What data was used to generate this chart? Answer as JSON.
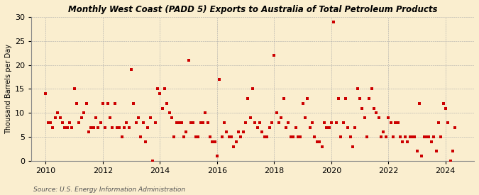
{
  "title": "Monthly West Coast (PADD 5) Exports to Australia of Total Petroleum Products",
  "ylabel": "Thousand Barrels per Day",
  "source": "Source: U.S. Energy Information Administration",
  "background_color": "#faeecf",
  "dot_color": "#cc0000",
  "dot_size": 7,
  "xlim": [
    2009.5,
    2025.0
  ],
  "ylim": [
    0,
    30
  ],
  "yticks": [
    0,
    5,
    10,
    15,
    20,
    25,
    30
  ],
  "xticks": [
    2010,
    2012,
    2014,
    2016,
    2018,
    2020,
    2022,
    2024
  ],
  "data_points": [
    [
      2010.0,
      14
    ],
    [
      2010.08,
      8
    ],
    [
      2010.17,
      8
    ],
    [
      2010.25,
      7
    ],
    [
      2010.33,
      9
    ],
    [
      2010.42,
      10
    ],
    [
      2010.5,
      9
    ],
    [
      2010.58,
      8
    ],
    [
      2010.67,
      7
    ],
    [
      2010.75,
      7
    ],
    [
      2010.83,
      8
    ],
    [
      2010.92,
      7
    ],
    [
      2011.0,
      15
    ],
    [
      2011.08,
      12
    ],
    [
      2011.17,
      8
    ],
    [
      2011.25,
      9
    ],
    [
      2011.33,
      10
    ],
    [
      2011.42,
      12
    ],
    [
      2011.5,
      6
    ],
    [
      2011.58,
      7
    ],
    [
      2011.67,
      7
    ],
    [
      2011.75,
      9
    ],
    [
      2011.83,
      7
    ],
    [
      2011.92,
      8
    ],
    [
      2012.0,
      12
    ],
    [
      2012.08,
      7
    ],
    [
      2012.17,
      12
    ],
    [
      2012.25,
      9
    ],
    [
      2012.33,
      7
    ],
    [
      2012.42,
      12
    ],
    [
      2012.5,
      7
    ],
    [
      2012.58,
      7
    ],
    [
      2012.67,
      5
    ],
    [
      2012.75,
      7
    ],
    [
      2012.83,
      8
    ],
    [
      2012.92,
      7
    ],
    [
      2013.0,
      19
    ],
    [
      2013.08,
      12
    ],
    [
      2013.17,
      8
    ],
    [
      2013.25,
      9
    ],
    [
      2013.33,
      5
    ],
    [
      2013.42,
      8
    ],
    [
      2013.5,
      4
    ],
    [
      2013.58,
      7
    ],
    [
      2013.67,
      9
    ],
    [
      2013.75,
      0
    ],
    [
      2013.83,
      8
    ],
    [
      2013.92,
      15
    ],
    [
      2014.0,
      14
    ],
    [
      2014.08,
      11
    ],
    [
      2014.17,
      15
    ],
    [
      2014.25,
      12
    ],
    [
      2014.33,
      10
    ],
    [
      2014.42,
      9
    ],
    [
      2014.5,
      5
    ],
    [
      2014.58,
      8
    ],
    [
      2014.67,
      8
    ],
    [
      2014.75,
      8
    ],
    [
      2014.83,
      5
    ],
    [
      2014.92,
      6
    ],
    [
      2015.0,
      21
    ],
    [
      2015.08,
      8
    ],
    [
      2015.17,
      8
    ],
    [
      2015.25,
      5
    ],
    [
      2015.33,
      5
    ],
    [
      2015.42,
      8
    ],
    [
      2015.5,
      8
    ],
    [
      2015.58,
      10
    ],
    [
      2015.67,
      8
    ],
    [
      2015.75,
      5
    ],
    [
      2015.83,
      4
    ],
    [
      2015.92,
      4
    ],
    [
      2016.0,
      1
    ],
    [
      2016.08,
      17
    ],
    [
      2016.17,
      5
    ],
    [
      2016.25,
      8
    ],
    [
      2016.33,
      6
    ],
    [
      2016.42,
      5
    ],
    [
      2016.5,
      5
    ],
    [
      2016.58,
      3
    ],
    [
      2016.67,
      4
    ],
    [
      2016.75,
      6
    ],
    [
      2016.83,
      5
    ],
    [
      2016.92,
      6
    ],
    [
      2017.0,
      8
    ],
    [
      2017.08,
      13
    ],
    [
      2017.17,
      9
    ],
    [
      2017.25,
      15
    ],
    [
      2017.33,
      8
    ],
    [
      2017.42,
      7
    ],
    [
      2017.5,
      8
    ],
    [
      2017.58,
      6
    ],
    [
      2017.67,
      5
    ],
    [
      2017.75,
      5
    ],
    [
      2017.83,
      7
    ],
    [
      2017.92,
      8
    ],
    [
      2018.0,
      22
    ],
    [
      2018.08,
      10
    ],
    [
      2018.17,
      8
    ],
    [
      2018.25,
      9
    ],
    [
      2018.33,
      13
    ],
    [
      2018.42,
      7
    ],
    [
      2018.5,
      8
    ],
    [
      2018.58,
      5
    ],
    [
      2018.67,
      5
    ],
    [
      2018.75,
      7
    ],
    [
      2018.83,
      5
    ],
    [
      2018.92,
      5
    ],
    [
      2019.0,
      12
    ],
    [
      2019.08,
      9
    ],
    [
      2019.17,
      13
    ],
    [
      2019.25,
      7
    ],
    [
      2019.33,
      8
    ],
    [
      2019.42,
      5
    ],
    [
      2019.5,
      4
    ],
    [
      2019.58,
      4
    ],
    [
      2019.67,
      3
    ],
    [
      2019.75,
      8
    ],
    [
      2019.83,
      7
    ],
    [
      2019.92,
      7
    ],
    [
      2020.0,
      8
    ],
    [
      2020.08,
      29
    ],
    [
      2020.17,
      8
    ],
    [
      2020.25,
      13
    ],
    [
      2020.33,
      5
    ],
    [
      2020.42,
      8
    ],
    [
      2020.5,
      13
    ],
    [
      2020.58,
      7
    ],
    [
      2020.67,
      5
    ],
    [
      2020.75,
      3
    ],
    [
      2020.83,
      7
    ],
    [
      2020.92,
      15
    ],
    [
      2021.0,
      13
    ],
    [
      2021.08,
      11
    ],
    [
      2021.17,
      9
    ],
    [
      2021.25,
      5
    ],
    [
      2021.33,
      13
    ],
    [
      2021.42,
      15
    ],
    [
      2021.5,
      11
    ],
    [
      2021.58,
      10
    ],
    [
      2021.67,
      9
    ],
    [
      2021.75,
      5
    ],
    [
      2021.83,
      6
    ],
    [
      2021.92,
      5
    ],
    [
      2022.0,
      9
    ],
    [
      2022.08,
      8
    ],
    [
      2022.17,
      5
    ],
    [
      2022.25,
      8
    ],
    [
      2022.33,
      8
    ],
    [
      2022.42,
      5
    ],
    [
      2022.5,
      4
    ],
    [
      2022.58,
      5
    ],
    [
      2022.67,
      4
    ],
    [
      2022.75,
      5
    ],
    [
      2022.83,
      5
    ],
    [
      2022.92,
      5
    ],
    [
      2023.0,
      2
    ],
    [
      2023.08,
      12
    ],
    [
      2023.17,
      1
    ],
    [
      2023.25,
      5
    ],
    [
      2023.33,
      5
    ],
    [
      2023.42,
      5
    ],
    [
      2023.5,
      4
    ],
    [
      2023.58,
      5
    ],
    [
      2023.67,
      2
    ],
    [
      2023.75,
      8
    ],
    [
      2023.83,
      5
    ],
    [
      2023.92,
      12
    ],
    [
      2024.0,
      11
    ],
    [
      2024.08,
      8
    ],
    [
      2024.17,
      0
    ],
    [
      2024.25,
      2
    ],
    [
      2024.33,
      7
    ]
  ]
}
